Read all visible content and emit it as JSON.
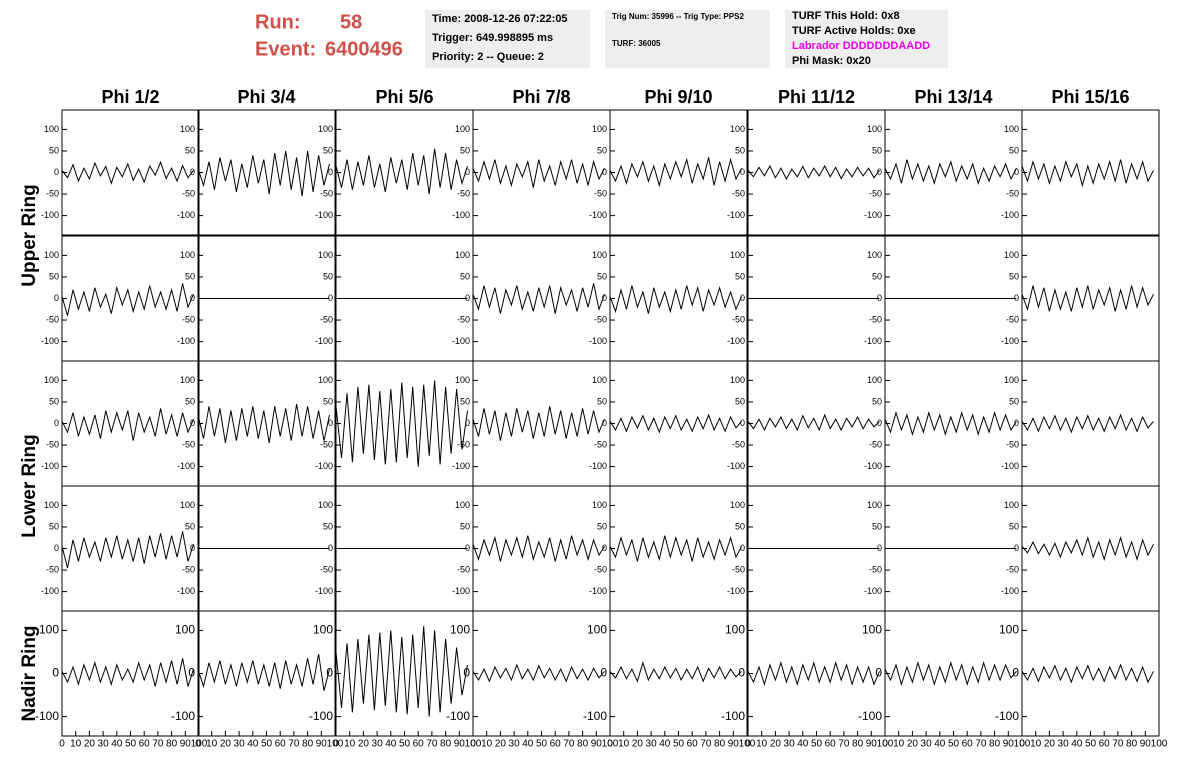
{
  "header": {
    "run_label": "Run:",
    "run": "58",
    "event_label": "Event:",
    "event": "6400496",
    "info1": [
      "Time: 2008-12-26 07:22:05",
      "Trigger: 649.998895 ms",
      "Priority: 2 -- Queue: 2"
    ],
    "info2": [
      "Trig Num: 35996 -- Trig Type: PPS2",
      "TURF: 36005"
    ],
    "info3": [
      "TURF This Hold: 0x8",
      "TURF Active Holds: 0xe",
      "Labrador DDDDDDDAADD",
      "Phi Mask: 0x20"
    ]
  },
  "columns": [
    "Phi 1/2",
    "Phi 3/4",
    "Phi 5/6",
    "Phi 7/8",
    "Phi 9/10",
    "Phi 11/12",
    "Phi 13/14",
    "Phi 15/16"
  ],
  "rows": [
    "Upper Ring",
    "Lower Ring",
    "Nadir Ring"
  ],
  "chart_data": {
    "type": "line",
    "color": "#000000",
    "x": [
      0,
      4,
      8,
      12,
      16,
      20,
      24,
      28,
      32,
      36,
      40,
      44,
      48,
      52,
      56,
      60,
      64,
      68,
      72,
      76,
      80,
      84,
      88,
      92,
      96
    ],
    "xlim": [
      0,
      100
    ],
    "xticks": [
      0,
      10,
      20,
      30,
      40,
      50,
      60,
      70,
      80,
      90,
      100
    ],
    "ylim": [
      -145,
      145
    ],
    "yticks": [
      -100,
      -50,
      0,
      50,
      100
    ],
    "nadir_yticks": [
      -100,
      0,
      100
    ],
    "panels": [
      [
        [
          5,
          -12,
          18,
          -20,
          10,
          -15,
          22,
          -8,
          14,
          -25,
          12,
          -10,
          20,
          -18,
          8,
          -22,
          15,
          -6,
          24,
          -14,
          10,
          -20,
          16,
          -12,
          5
        ],
        [
          10,
          -30,
          25,
          -40,
          35,
          -20,
          30,
          -45,
          20,
          -35,
          40,
          -25,
          30,
          -50,
          45,
          -30,
          50,
          -40,
          35,
          -55,
          50,
          -45,
          40,
          -30,
          20
        ],
        [
          15,
          -35,
          30,
          -40,
          25,
          -30,
          40,
          -35,
          20,
          -45,
          35,
          -25,
          30,
          -40,
          45,
          -30,
          40,
          -50,
          55,
          -35,
          45,
          -40,
          30,
          -25,
          15
        ],
        [
          10,
          -20,
          25,
          -15,
          30,
          -25,
          15,
          -30,
          20,
          -10,
          25,
          -35,
          30,
          -20,
          15,
          -30,
          25,
          -15,
          30,
          -25,
          20,
          -30,
          25,
          -15,
          10
        ],
        [
          5,
          -20,
          15,
          -25,
          20,
          -10,
          25,
          -20,
          15,
          -30,
          20,
          -15,
          25,
          -10,
          30,
          -25,
          20,
          -15,
          35,
          -30,
          25,
          -20,
          30,
          -15,
          10
        ],
        [
          5,
          -10,
          12,
          -8,
          15,
          -12,
          10,
          -15,
          8,
          -10,
          14,
          -12,
          10,
          -8,
          15,
          -10,
          12,
          -14,
          8,
          -10,
          12,
          -8,
          10,
          -12,
          5
        ],
        [
          10,
          -15,
          20,
          -25,
          30,
          -15,
          20,
          -20,
          15,
          -25,
          20,
          -10,
          25,
          -20,
          15,
          -15,
          20,
          -25,
          10,
          -20,
          15,
          -10,
          20,
          -15,
          10
        ],
        [
          15,
          -20,
          25,
          -15,
          20,
          -25,
          15,
          -20,
          25,
          -10,
          20,
          -30,
          15,
          -25,
          20,
          -15,
          25,
          -20,
          30,
          -25,
          20,
          -15,
          25,
          -20,
          5
        ]
      ],
      [
        [
          5,
          -40,
          20,
          -25,
          15,
          -30,
          25,
          -20,
          10,
          -35,
          25,
          -15,
          20,
          -30,
          15,
          -25,
          30,
          -20,
          15,
          -25,
          20,
          -30,
          35,
          -20,
          10
        ],
        [
          0,
          0,
          0,
          0,
          0,
          0,
          0,
          0,
          0,
          0,
          0,
          0,
          0,
          0,
          0,
          0,
          0,
          0,
          0,
          0,
          0,
          0,
          0,
          0,
          0
        ],
        [
          0,
          0,
          0,
          0,
          0,
          0,
          0,
          0,
          0,
          0,
          0,
          0,
          0,
          0,
          0,
          0,
          0,
          0,
          0,
          0,
          0,
          0,
          0,
          0,
          0
        ],
        [
          10,
          -25,
          30,
          -20,
          25,
          -35,
          20,
          -15,
          30,
          -25,
          15,
          -30,
          25,
          -20,
          30,
          -35,
          25,
          -15,
          20,
          -30,
          25,
          -20,
          35,
          -25,
          10
        ],
        [
          5,
          -30,
          20,
          -25,
          30,
          -20,
          15,
          -35,
          25,
          -20,
          15,
          -30,
          20,
          -25,
          30,
          -15,
          25,
          -30,
          20,
          -15,
          25,
          -20,
          15,
          -25,
          5
        ],
        [
          0,
          0,
          0,
          0,
          0,
          0,
          0,
          0,
          0,
          0,
          0,
          0,
          0,
          0,
          0,
          0,
          0,
          0,
          0,
          0,
          0,
          0,
          0,
          0,
          0
        ],
        [
          0,
          0,
          0,
          0,
          0,
          0,
          0,
          0,
          0,
          0,
          0,
          0,
          0,
          0,
          0,
          0,
          0,
          0,
          0,
          0,
          0,
          0,
          0,
          0,
          0
        ],
        [
          10,
          -25,
          30,
          -20,
          25,
          -30,
          20,
          -25,
          15,
          -30,
          25,
          -20,
          30,
          -25,
          20,
          -15,
          25,
          -30,
          20,
          -25,
          30,
          -20,
          25,
          -15,
          10
        ]
      ],
      [
        [
          5,
          -20,
          25,
          -30,
          15,
          -25,
          20,
          -35,
          30,
          -20,
          25,
          -15,
          30,
          -40,
          25,
          -20,
          15,
          -30,
          35,
          -25,
          20,
          -30,
          25,
          -20,
          10
        ],
        [
          20,
          -35,
          40,
          -30,
          35,
          -45,
          30,
          -40,
          35,
          -30,
          40,
          -35,
          30,
          -45,
          40,
          -30,
          35,
          -40,
          45,
          -30,
          40,
          -35,
          30,
          -40,
          20
        ],
        [
          40,
          -80,
          70,
          -90,
          85,
          -70,
          90,
          -85,
          75,
          -95,
          80,
          -90,
          95,
          -80,
          85,
          -100,
          90,
          -75,
          100,
          -95,
          85,
          -70,
          80,
          -60,
          30
        ],
        [
          10,
          -30,
          35,
          -25,
          30,
          -40,
          25,
          -30,
          35,
          -20,
          30,
          -35,
          25,
          -30,
          40,
          -25,
          30,
          -35,
          25,
          -30,
          35,
          -25,
          30,
          -20,
          10
        ],
        [
          5,
          -15,
          12,
          -18,
          15,
          -10,
          18,
          -15,
          12,
          -20,
          15,
          -12,
          18,
          -15,
          10,
          -18,
          15,
          -12,
          20,
          -15,
          12,
          -18,
          15,
          -10,
          5
        ],
        [
          5,
          -12,
          10,
          -15,
          12,
          -8,
          15,
          -12,
          10,
          -15,
          18,
          -10,
          12,
          -15,
          20,
          -12,
          10,
          -15,
          12,
          -8,
          15,
          -12,
          10,
          -8,
          5
        ],
        [
          10,
          -20,
          25,
          -15,
          20,
          -25,
          15,
          -20,
          25,
          -15,
          20,
          -25,
          15,
          -20,
          25,
          -15,
          20,
          -25,
          15,
          -20,
          25,
          -15,
          20,
          -15,
          5
        ],
        [
          5,
          -15,
          12,
          -18,
          15,
          -12,
          18,
          -15,
          12,
          -20,
          15,
          -12,
          18,
          -15,
          12,
          -18,
          15,
          -12,
          20,
          -15,
          12,
          -18,
          15,
          -10,
          5
        ]
      ],
      [
        [
          5,
          -45,
          20,
          -30,
          25,
          -20,
          15,
          -30,
          25,
          -20,
          30,
          -25,
          20,
          -30,
          25,
          -35,
          30,
          -20,
          35,
          -25,
          30,
          -20,
          40,
          -30,
          10
        ],
        [
          0,
          0,
          0,
          0,
          0,
          0,
          0,
          0,
          0,
          0,
          0,
          0,
          0,
          0,
          0,
          0,
          0,
          0,
          0,
          0,
          0,
          0,
          0,
          0,
          0
        ],
        [
          0,
          0,
          0,
          0,
          0,
          0,
          0,
          0,
          0,
          0,
          0,
          0,
          0,
          0,
          0,
          0,
          0,
          0,
          0,
          0,
          0,
          0,
          0,
          0,
          0
        ],
        [
          10,
          -25,
          20,
          -15,
          25,
          -30,
          20,
          -15,
          25,
          -20,
          30,
          -25,
          15,
          -20,
          25,
          -30,
          20,
          -25,
          30,
          -15,
          20,
          -25,
          20,
          -15,
          5
        ],
        [
          5,
          -20,
          25,
          -15,
          20,
          -30,
          25,
          -20,
          15,
          -25,
          30,
          -20,
          25,
          -15,
          20,
          -30,
          25,
          -20,
          15,
          -25,
          20,
          -15,
          25,
          -20,
          5
        ],
        [
          0,
          0,
          0,
          0,
          0,
          0,
          0,
          0,
          0,
          0,
          0,
          0,
          0,
          0,
          0,
          0,
          0,
          0,
          0,
          0,
          0,
          0,
          0,
          0,
          0
        ],
        [
          0,
          0,
          0,
          0,
          0,
          0,
          0,
          0,
          0,
          0,
          0,
          0,
          0,
          0,
          0,
          0,
          0,
          0,
          0,
          0,
          0,
          0,
          0,
          0,
          0
        ],
        [
          5,
          -10,
          15,
          -12,
          10,
          -15,
          12,
          -20,
          15,
          -10,
          20,
          -15,
          25,
          -20,
          15,
          -25,
          20,
          -15,
          25,
          -20,
          15,
          -25,
          20,
          -15,
          10
        ]
      ],
      [
        [
          5,
          -20,
          15,
          -25,
          20,
          -15,
          25,
          -20,
          15,
          -25,
          20,
          -15,
          10,
          -20,
          25,
          -15,
          20,
          -30,
          25,
          -20,
          30,
          -25,
          35,
          -30,
          10
        ],
        [
          10,
          -30,
          25,
          -20,
          30,
          -25,
          20,
          -30,
          25,
          -20,
          30,
          -25,
          20,
          -30,
          25,
          -35,
          30,
          -25,
          20,
          -30,
          35,
          -25,
          45,
          -40,
          10
        ],
        [
          50,
          -80,
          70,
          -90,
          80,
          -70,
          90,
          -85,
          95,
          -75,
          100,
          -90,
          85,
          -95,
          90,
          -80,
          110,
          -100,
          100,
          -90,
          80,
          -70,
          60,
          -50,
          20
        ],
        [
          5,
          -15,
          10,
          -18,
          15,
          -10,
          12,
          -15,
          20,
          -12,
          10,
          -15,
          18,
          -10,
          12,
          -15,
          10,
          -18,
          15,
          -12,
          10,
          -15,
          12,
          -10,
          5
        ],
        [
          5,
          -10,
          15,
          -12,
          10,
          -18,
          25,
          -15,
          10,
          -12,
          15,
          -10,
          12,
          -15,
          10,
          -12,
          15,
          -18,
          12,
          -10,
          15,
          -12,
          10,
          -8,
          5
        ],
        [
          5,
          -20,
          15,
          -25,
          20,
          -15,
          25,
          -20,
          15,
          -25,
          20,
          -15,
          25,
          -20,
          15,
          -20,
          25,
          -15,
          20,
          -25,
          15,
          -20,
          15,
          -25,
          5
        ],
        [
          10,
          -15,
          20,
          -25,
          15,
          -20,
          25,
          -15,
          20,
          -25,
          15,
          -20,
          25,
          -15,
          20,
          -25,
          15,
          -20,
          25,
          -15,
          20,
          -15,
          20,
          -10,
          5
        ],
        [
          5,
          -15,
          12,
          -18,
          15,
          -10,
          18,
          -15,
          12,
          -20,
          15,
          -12,
          18,
          -15,
          12,
          -18,
          15,
          -12,
          20,
          -15,
          12,
          -18,
          15,
          -20,
          5
        ]
      ]
    ]
  }
}
